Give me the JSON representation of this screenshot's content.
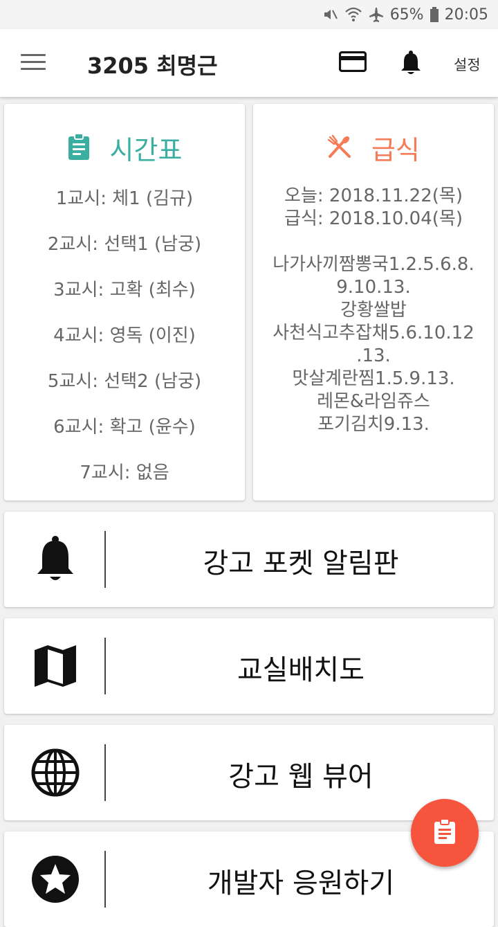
{
  "status_bar": {
    "battery": "65%",
    "time": "20:05",
    "icons": [
      "mute-icon",
      "wifi-icon",
      "airplane-icon",
      "battery-icon"
    ]
  },
  "app_bar": {
    "title": "3205 최명근",
    "settings_label": "설정",
    "icons": [
      "menu-icon",
      "credit-card-icon",
      "bell-icon"
    ]
  },
  "timetable": {
    "title": "시간표",
    "icon": "clipboard-icon",
    "color": "#3aaea0",
    "periods": [
      "1교시: 체1 (김규)",
      "2교시: 선택1 (남궁)",
      "3교시: 고확 (최수)",
      "4교시: 영독 (이진)",
      "5교시: 선택2 (남궁)",
      "6교시: 확고 (윤수)",
      "7교시: 없음"
    ]
  },
  "meal": {
    "title": "급식",
    "icon": "utensils-icon",
    "color": "#f57c56",
    "today": "오늘: 2018.11.22(목)",
    "meal_date": "급식: 2018.10.04(목)",
    "menu_lines": [
      "나가사끼짬뽕국1.2.5.6.8.",
      "9.10.13.",
      "강황쌀밥",
      "사천식고추잡채5.6.10.12",
      ".13.",
      "맛살계란찜1.5.9.13.",
      "레몬&라임쥬스",
      "포기김치9.13."
    ]
  },
  "menu_items": [
    {
      "label": "강고 포켓 알림판",
      "icon": "bell-icon"
    },
    {
      "label": "교실배치도",
      "icon": "map-icon"
    },
    {
      "label": "강고 웹 뷰어",
      "icon": "globe-icon"
    },
    {
      "label": "개발자 응원하기",
      "icon": "star-icon"
    }
  ],
  "fab": {
    "icon": "clipboard-icon",
    "color": "#f6543d"
  }
}
